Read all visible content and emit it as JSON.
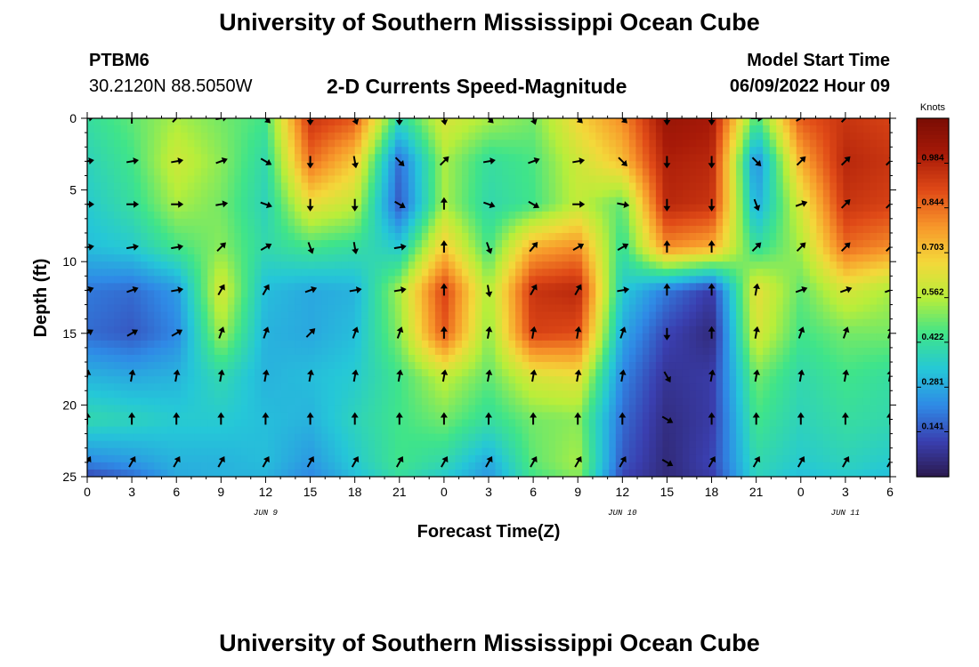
{
  "header": {
    "title": "University of Southern Mississippi Ocean Cube",
    "station_id": "PTBM6",
    "station_coords": "30.2120N  88.5050W",
    "plot_title": "2-D Currents Speed-Magnitude",
    "model_start_label": "Model Start Time",
    "model_start_value": "06/09/2022 Hour 09"
  },
  "footer": {
    "title": "University of Southern Mississippi Ocean Cube"
  },
  "chart_data": {
    "type": "heatmap",
    "title": "2-D Currents Speed-Magnitude",
    "xlabel": "Forecast Time(Z)",
    "ylabel": "Depth (ft)",
    "x_range_hours": [
      0,
      54
    ],
    "y_range_ft": [
      0,
      25
    ],
    "x_tick_hours": [
      0,
      3,
      6,
      9,
      12,
      15,
      18,
      21,
      24,
      27,
      30,
      33,
      36,
      39,
      42,
      45,
      48,
      51,
      54
    ],
    "x_tick_labels": [
      "0",
      "3",
      "6",
      "9",
      "12",
      "15",
      "18",
      "21",
      "0",
      "3",
      "6",
      "9",
      "12",
      "15",
      "18",
      "21",
      "0",
      "3",
      "6"
    ],
    "y_ticks": [
      0,
      5,
      10,
      15,
      20,
      25
    ],
    "y_tick_labels": [
      "0",
      "5",
      "10",
      "15",
      "20",
      "25"
    ],
    "date_labels": [
      {
        "hour": 12,
        "text": "JUN 9"
      },
      {
        "hour": 36,
        "text": "JUN 10"
      },
      {
        "hour": 51,
        "text": "JUN 11"
      }
    ],
    "colorbar": {
      "unit": "Knots",
      "min": 0.0,
      "max": 1.125,
      "tick_values": [
        0.141,
        0.281,
        0.422,
        0.562,
        0.703,
        0.844,
        0.984
      ],
      "tick_labels": [
        "0.141",
        "0.281",
        "0.422",
        "0.562",
        "0.703",
        "0.844",
        "0.984"
      ],
      "colors": [
        "#2b1a4d",
        "#3a3fb0",
        "#2f8ae6",
        "#25c7d8",
        "#3fe48a",
        "#b8ee3a",
        "#f4d83a",
        "#f7962a",
        "#e04a17",
        "#a81a08",
        "#7a0d04"
      ]
    },
    "speed_grid": {
      "hours": [
        0,
        3,
        6,
        9,
        12,
        15,
        18,
        21,
        24,
        27,
        30,
        33,
        36,
        39,
        42,
        45,
        48,
        51,
        54
      ],
      "depths_ft": [
        0,
        3,
        6,
        9,
        12,
        15,
        18,
        21,
        24,
        25
      ],
      "speed_knots": [
        [
          0.42,
          0.48,
          0.55,
          0.5,
          0.45,
          0.95,
          0.88,
          0.4,
          0.62,
          0.55,
          0.5,
          0.68,
          0.8,
          1.05,
          1.02,
          0.45,
          0.88,
          0.95,
          0.92
        ],
        [
          0.38,
          0.45,
          0.6,
          0.52,
          0.4,
          0.85,
          0.7,
          0.18,
          0.55,
          0.42,
          0.46,
          0.6,
          0.72,
          1.0,
          0.98,
          0.22,
          0.75,
          0.98,
          0.95
        ],
        [
          0.35,
          0.42,
          0.55,
          0.5,
          0.38,
          0.65,
          0.58,
          0.15,
          0.55,
          0.4,
          0.45,
          0.58,
          0.48,
          0.98,
          0.95,
          0.28,
          0.62,
          0.95,
          0.92
        ],
        [
          0.32,
          0.35,
          0.45,
          0.52,
          0.4,
          0.45,
          0.42,
          0.35,
          0.7,
          0.45,
          0.75,
          0.8,
          0.42,
          0.8,
          0.75,
          0.42,
          0.55,
          0.85,
          0.8
        ],
        [
          0.2,
          0.18,
          0.25,
          0.62,
          0.32,
          0.28,
          0.3,
          0.55,
          0.92,
          0.55,
          0.95,
          0.98,
          0.35,
          0.2,
          0.1,
          0.65,
          0.48,
          0.62,
          0.55
        ],
        [
          0.18,
          0.15,
          0.22,
          0.55,
          0.3,
          0.28,
          0.32,
          0.52,
          0.88,
          0.52,
          0.92,
          0.9,
          0.28,
          0.12,
          0.05,
          0.62,
          0.45,
          0.5,
          0.5
        ],
        [
          0.3,
          0.28,
          0.3,
          0.4,
          0.3,
          0.32,
          0.35,
          0.45,
          0.58,
          0.48,
          0.62,
          0.65,
          0.22,
          0.08,
          0.1,
          0.5,
          0.4,
          0.45,
          0.42
        ],
        [
          0.4,
          0.38,
          0.35,
          0.35,
          0.32,
          0.3,
          0.38,
          0.45,
          0.5,
          0.42,
          0.5,
          0.52,
          0.18,
          0.06,
          0.1,
          0.45,
          0.38,
          0.42,
          0.4
        ],
        [
          0.22,
          0.25,
          0.3,
          0.3,
          0.32,
          0.25,
          0.35,
          0.45,
          0.4,
          0.28,
          0.48,
          0.55,
          0.15,
          0.05,
          0.12,
          0.4,
          0.35,
          0.38,
          0.35
        ],
        [
          0.12,
          0.18,
          0.28,
          0.3,
          0.3,
          0.22,
          0.32,
          0.42,
          0.35,
          0.25,
          0.45,
          0.52,
          0.12,
          0.05,
          0.1,
          0.38,
          0.32,
          0.35,
          0.32
        ]
      ]
    },
    "arrows": {
      "hours": [
        0,
        3,
        6,
        9,
        12,
        15,
        18,
        21,
        24,
        27,
        30,
        33,
        36,
        39,
        42,
        45,
        48,
        51,
        54
      ],
      "depths_ft": [
        0,
        3,
        6,
        9,
        12,
        15,
        18,
        21,
        24
      ],
      "direction_deg": [
        [
          80,
          0,
          45,
          80,
          135,
          180,
          160,
          180,
          170,
          135,
          160,
          135,
          135,
          180,
          180,
          90,
          60,
          45,
          0
        ],
        [
          80,
          80,
          80,
          70,
          120,
          180,
          170,
          135,
          45,
          80,
          70,
          80,
          135,
          180,
          180,
          135,
          45,
          45,
          45
        ],
        [
          90,
          90,
          90,
          80,
          110,
          180,
          180,
          120,
          0,
          110,
          120,
          90,
          100,
          180,
          180,
          160,
          70,
          45,
          45
        ],
        [
          80,
          80,
          80,
          45,
          60,
          160,
          170,
          80,
          0,
          160,
          40,
          60,
          60,
          0,
          0,
          45,
          45,
          45,
          45
        ],
        [
          70,
          70,
          80,
          30,
          30,
          70,
          80,
          80,
          0,
          170,
          30,
          30,
          80,
          0,
          0,
          10,
          70,
          70,
          70
        ],
        [
          60,
          60,
          60,
          20,
          20,
          45,
          20,
          20,
          0,
          10,
          10,
          10,
          20,
          180,
          0,
          10,
          20,
          20,
          20
        ],
        [
          10,
          10,
          10,
          10,
          10,
          10,
          10,
          10,
          10,
          10,
          10,
          10,
          10,
          150,
          10,
          10,
          10,
          10,
          10
        ],
        [
          0,
          0,
          0,
          0,
          0,
          0,
          0,
          0,
          0,
          0,
          0,
          0,
          0,
          120,
          0,
          0,
          0,
          0,
          0
        ],
        [
          30,
          30,
          30,
          30,
          30,
          30,
          30,
          30,
          30,
          30,
          30,
          30,
          30,
          120,
          30,
          30,
          30,
          30,
          30
        ]
      ]
    }
  }
}
